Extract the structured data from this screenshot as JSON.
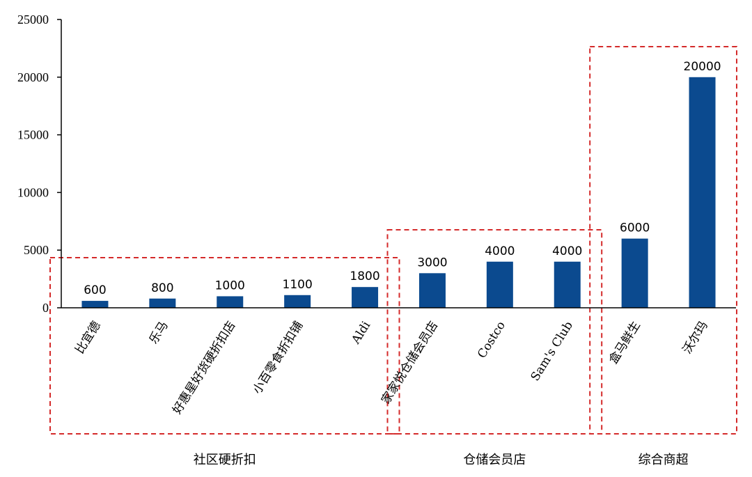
{
  "chart_data": {
    "type": "bar",
    "title": "",
    "xlabel": "",
    "ylabel": "",
    "ylim": [
      0,
      25000
    ],
    "yticks": [
      "0",
      "5000",
      "10000",
      "15000",
      "20000",
      "25000"
    ],
    "grid": false,
    "categories": [
      "比宜德",
      "乐马",
      "好惠星好货硬折扣店",
      "小百零食折扣铺",
      "Aldi",
      "家家悦仓储会员店",
      "Costco",
      "Sam's Club",
      "盒马鲜生",
      "沃尔玛"
    ],
    "values": [
      600,
      800,
      1000,
      1100,
      1800,
      3000,
      4000,
      4000,
      6000,
      20000
    ],
    "data_labels": [
      "600",
      "800",
      "1000",
      "1100",
      "1800",
      "3000",
      "4000",
      "4000",
      "6000",
      "20000"
    ],
    "groups": [
      {
        "label": "社区硬折扣",
        "start": 0,
        "end": 4
      },
      {
        "label": "仓储会员店",
        "start": 5,
        "end": 7
      },
      {
        "label": "综合商超",
        "start": 8,
        "end": 9
      }
    ],
    "colors": {
      "bar": "#0b4a8f",
      "group_box": "#d42a2a",
      "axis": "#000000"
    }
  }
}
